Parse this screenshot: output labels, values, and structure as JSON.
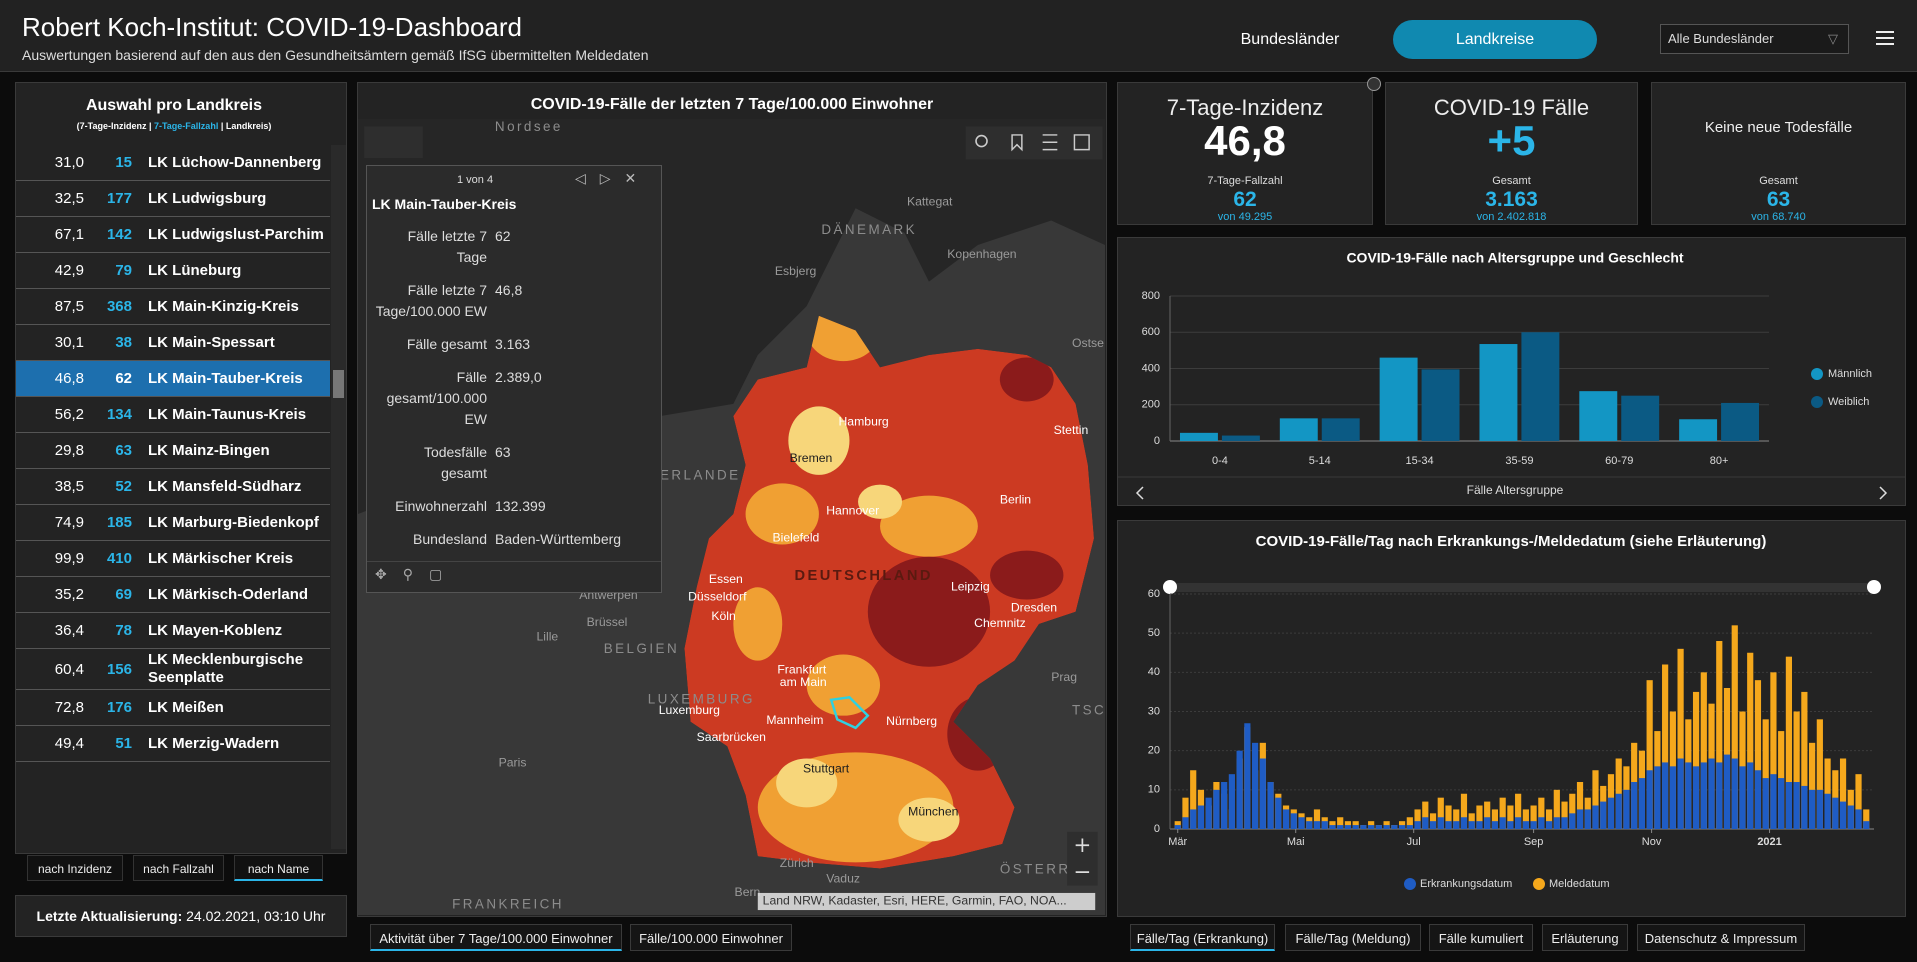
{
  "header": {
    "title": "Robert Koch-Institut: COVID-19-Dashboard",
    "subtitle": "Auswertungen basierend auf den aus den Gesundheitsämtern gemäß IfSG übermittelten Meldedaten",
    "nav": [
      "Bundesländer",
      "Landkreise"
    ],
    "active_nav": 1,
    "dropdown": "Alle Bundesländer"
  },
  "landkreise": {
    "title": "Auswahl pro Landkreis",
    "subtitle_parts": [
      "(7-Tage-Inzidenz | ",
      "7-Tage-Fallzahl",
      " | Landkreis)"
    ],
    "rows": [
      [
        "31,0",
        "15",
        "LK Lüchow-Dannenberg"
      ],
      [
        "32,5",
        "177",
        "LK Ludwigsburg"
      ],
      [
        "67,1",
        "142",
        "LK Ludwigslust-Parchim"
      ],
      [
        "42,9",
        "79",
        "LK Lüneburg"
      ],
      [
        "87,5",
        "368",
        "LK Main-Kinzig-Kreis"
      ],
      [
        "30,1",
        "38",
        "LK Main-Spessart"
      ],
      [
        "46,8",
        "62",
        "LK Main-Tauber-Kreis"
      ],
      [
        "56,2",
        "134",
        "LK Main-Taunus-Kreis"
      ],
      [
        "29,8",
        "63",
        "LK Mainz-Bingen"
      ],
      [
        "38,5",
        "52",
        "LK Mansfeld-Südharz"
      ],
      [
        "74,9",
        "185",
        "LK Marburg-Biedenkopf"
      ],
      [
        "99,9",
        "410",
        "LK Märkischer Kreis"
      ],
      [
        "35,2",
        "69",
        "LK Märkisch-Oderland"
      ],
      [
        "36,4",
        "78",
        "LK Mayen-Koblenz"
      ],
      [
        "60,4",
        "156",
        "LK Mecklenburgische Seenplatte"
      ],
      [
        "72,8",
        "176",
        "LK Meißen"
      ],
      [
        "49,4",
        "51",
        "LK Merzig-Wadern"
      ]
    ],
    "selected": 6,
    "sort_buttons": [
      "nach Inzidenz",
      "nach Fallzahl",
      "nach Name"
    ],
    "active_sort": 2,
    "update_label": "Letzte Aktualisierung:",
    "update_value": "24.02.2021, 03:10 Uhr"
  },
  "map": {
    "title": "COVID-19-Fälle der letzten 7 Tage/100.000 Einwohner",
    "labels": [
      "Nordsee",
      "Kattegat",
      "DÄNEMARK",
      "Esbjerg",
      "Kopenhagen",
      "Ostse",
      "Hamburg",
      "Bremen",
      "Stettin",
      "Hannover",
      "Berlin",
      "Bielefeld",
      "ERLANDE",
      "DEUTSCHLAND",
      "Essen",
      "Düsseldorf",
      "Antwerpen",
      "Leipzig",
      "Dresden",
      "Brüssel",
      "Köln",
      "Lille",
      "Chemnitz",
      "BELGIEN",
      "Frankfurt",
      "am Main",
      "Prag",
      "LUXEMBURG",
      "Luxemburg",
      "TSC",
      "Mannheim",
      "Nürnberg",
      "Saarbrücken",
      "Paris",
      "Stuttgart",
      "München",
      "Zürich",
      "ÖSTERR",
      "Vaduz",
      "FRANKREICH",
      "Bern"
    ],
    "attribution": "Land NRW, Kadaster, Esri, HERE, Garmin, FAO, NOA...",
    "popup": {
      "counter": "1 von 4",
      "title": "LK Main-Tauber-Kreis",
      "fields": [
        [
          "Fälle letzte 7 Tage",
          "62"
        ],
        [
          "Fälle letzte 7 Tage/100.000 EW",
          "46,8"
        ],
        [
          "Fälle gesamt",
          "3.163"
        ],
        [
          "Fälle gesamt/100.000 EW",
          "2.389,0"
        ],
        [
          "Todesfälle gesamt",
          "63"
        ],
        [
          "Einwohnerzahl",
          "132.399"
        ],
        [
          "Bundesland",
          "Baden-Württemberg"
        ]
      ]
    },
    "tabs": [
      "Aktivität über 7 Tage/100.000 Einwohner",
      "Fälle/100.000 Einwohner"
    ],
    "active_tab": 0
  },
  "kpis": [
    {
      "title": "7-Tage-Inzidenz",
      "value": "46,8",
      "label": "7-Tage-Fallzahl",
      "sub": "62",
      "of": "von 49.295"
    },
    {
      "title": "COVID-19 Fälle",
      "value": "+5",
      "label": "Gesamt",
      "sub": "3.163",
      "of": "von 2.402.818"
    },
    {
      "title": "Keine neue Todesfälle",
      "label": "Gesamt",
      "sub": "63",
      "of": "von 68.740"
    }
  ],
  "chart_data": [
    {
      "type": "bar",
      "title": "COVID-19-Fälle nach Altersgruppe und Geschlecht",
      "x_label": "Fälle Altersgruppe",
      "categories": [
        "0-4",
        "5-14",
        "15-34",
        "35-59",
        "60-79",
        "80+"
      ],
      "series": [
        {
          "name": "Männlich",
          "color": "#1396c4",
          "values": [
            45,
            125,
            460,
            535,
            275,
            120
          ]
        },
        {
          "name": "Weiblich",
          "color": "#0b5a84",
          "values": [
            30,
            125,
            395,
            600,
            250,
            210
          ]
        }
      ],
      "ylim": [
        0,
        800
      ],
      "yticks": [
        0,
        200,
        400,
        600,
        800
      ],
      "grid": true,
      "legend": "right"
    },
    {
      "type": "bar",
      "title": "COVID-19-Fälle/Tag nach Erkrankungs-/Meldedatum (siehe Erläuterung)",
      "x": [
        0,
        4,
        8,
        12,
        16,
        20,
        24,
        28,
        32,
        36,
        40,
        44,
        48,
        52,
        56,
        60,
        64,
        68,
        72,
        76,
        80,
        84,
        88,
        92,
        96,
        100,
        104,
        108,
        112,
        116,
        120,
        124,
        128,
        132,
        136,
        140,
        144,
        148,
        152,
        156,
        160,
        164,
        168,
        172,
        176,
        180,
        184,
        188,
        192,
        196,
        200,
        204,
        208,
        212,
        216,
        220,
        224,
        228,
        232,
        236,
        240,
        244,
        248,
        252,
        256,
        260,
        264,
        268,
        272,
        276,
        280,
        284,
        288,
        292,
        296,
        300,
        304,
        308,
        312,
        316,
        320,
        324,
        328,
        332,
        336,
        340,
        344,
        348,
        352,
        356
      ],
      "xlim": [
        -4,
        360
      ],
      "xticks": [
        {
          "value": 0,
          "label": "Mär"
        },
        {
          "value": 61,
          "label": "Mai"
        },
        {
          "value": 122,
          "label": "Jul"
        },
        {
          "value": 184,
          "label": "Sep"
        },
        {
          "value": 245,
          "label": "Nov"
        },
        {
          "value": 306,
          "label": "2021"
        }
      ],
      "series": [
        {
          "name": "Erkrankungsdatum",
          "color": "#1f5cc4",
          "values": [
            1,
            3,
            5,
            6,
            8,
            10,
            12,
            14,
            20,
            27,
            22,
            18,
            12,
            8,
            5,
            4,
            3,
            2,
            2,
            2,
            1,
            1,
            1,
            1,
            1,
            1,
            1,
            1,
            1,
            1,
            1,
            2,
            3,
            2,
            3,
            2,
            2,
            3,
            2,
            2,
            3,
            2,
            3,
            2,
            3,
            2,
            2,
            3,
            2,
            3,
            3,
            4,
            5,
            5,
            6,
            7,
            8,
            9,
            10,
            12,
            13,
            15,
            16,
            17,
            16,
            18,
            17,
            16,
            17,
            18,
            17,
            19,
            18,
            16,
            17,
            15,
            13,
            14,
            13,
            12,
            12,
            11,
            10,
            10,
            9,
            8,
            7,
            6,
            5,
            2
          ]
        },
        {
          "name": "Meldedatum",
          "color": "#f5a81c",
          "values": [
            2,
            8,
            15,
            10,
            6,
            12,
            9,
            5,
            18,
            26,
            15,
            22,
            12,
            9,
            6,
            5,
            4,
            3,
            5,
            3,
            2,
            3,
            2,
            2,
            1,
            2,
            1,
            2,
            1,
            2,
            3,
            5,
            7,
            4,
            8,
            6,
            5,
            9,
            4,
            6,
            7,
            5,
            8,
            6,
            9,
            5,
            6,
            8,
            5,
            10,
            7,
            9,
            12,
            8,
            15,
            11,
            14,
            18,
            16,
            22,
            20,
            38,
            25,
            42,
            30,
            46,
            28,
            35,
            40,
            32,
            48,
            36,
            52,
            30,
            45,
            38,
            28,
            40,
            25,
            44,
            30,
            35,
            22,
            28,
            18,
            15,
            18,
            10,
            14,
            5
          ]
        }
      ],
      "ylim": [
        0,
        60
      ],
      "yticks": [
        0,
        10,
        20,
        30,
        40,
        50,
        60
      ],
      "grid": true,
      "legend": "bottom"
    }
  ],
  "bottom_tabs": {
    "tabs": [
      "Fälle/Tag (Erkrankung)",
      "Fälle/Tag (Meldung)",
      "Fälle kumuliert",
      "Erläuterung",
      "Datenschutz & Impressum"
    ],
    "active": 0
  }
}
